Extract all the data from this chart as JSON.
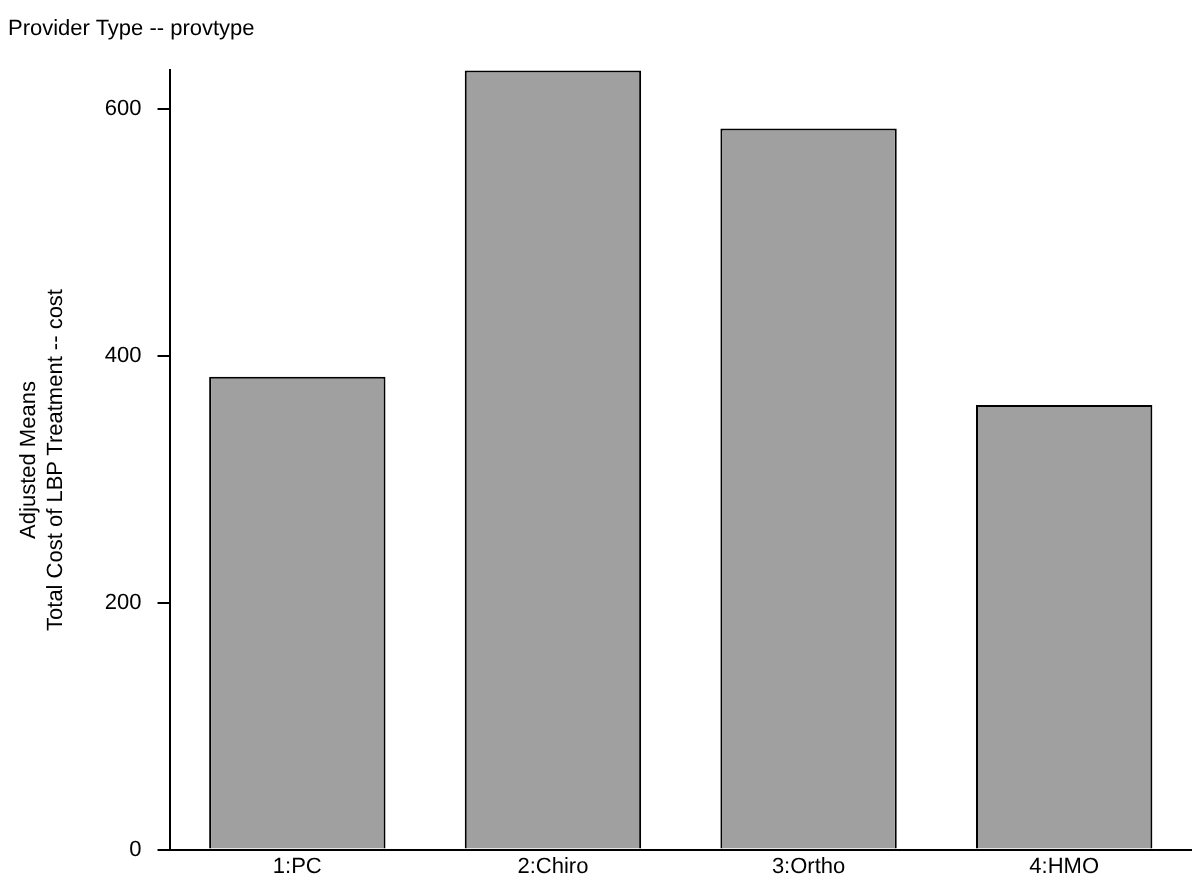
{
  "chart_data": {
    "type": "bar",
    "title": "Provider Type -- provtype",
    "ylabel": "Adjusted Means\nTotal Cost of LBP Treatment -- cost",
    "categories": [
      "1:PC",
      "2:Chiro",
      "3:Ortho",
      "4:HMO"
    ],
    "values": [
      383,
      631,
      584,
      360
    ],
    "color": "#a0a0a0",
    "ylim": [
      0,
      631
    ],
    "yticks": [
      0,
      200,
      400,
      600
    ],
    "grid": false,
    "legend": false
  }
}
